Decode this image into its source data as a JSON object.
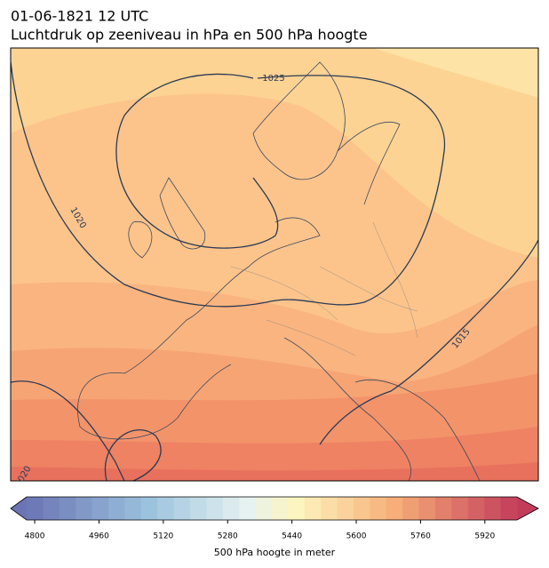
{
  "title": [
    "01-06-1821 12 UTC",
    "Luchtdruk op zeeniveau in hPa en 500 hPa hoogte"
  ],
  "contour_labels": [
    1025,
    1020,
    1015,
    1020
  ],
  "colorbar": {
    "label": "500 hPa hoogte in meter",
    "lim": [
      4780,
      6000
    ],
    "ticks": [
      4800,
      4960,
      5120,
      5280,
      5440,
      5600,
      5760,
      5920
    ]
  }
}
